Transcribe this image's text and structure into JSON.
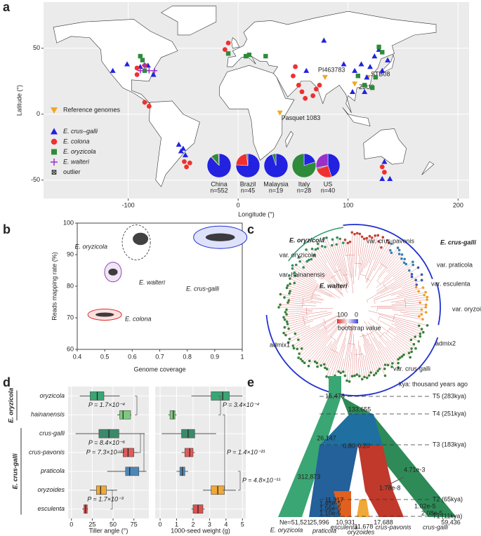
{
  "panel_labels": [
    "a",
    "b",
    "c",
    "d",
    "e"
  ],
  "chart_data": [
    {
      "type": "map",
      "xlabel": "Longitude (°)",
      "ylabel": "Latitude (°)",
      "xlim": [
        -177,
        210
      ],
      "ylim": [
        -64,
        85
      ],
      "xticks": [
        -100,
        0,
        100,
        200
      ],
      "yticks": [
        -50,
        0,
        50
      ],
      "grid": true,
      "series": [
        {
          "name": "Reference genomes",
          "color": "#f5a623",
          "marker": "triangle-down",
          "x": [
            79,
            118,
            106,
            38
          ],
          "y": [
            28,
            28,
            23,
            1
          ],
          "point_labels": [
            "PI463783",
            "STB08",
            "ZJU2",
            "Pasquet 1083"
          ]
        },
        {
          "name": "E. crus–galli",
          "color": "#2222e0",
          "marker": "triangle",
          "x": [
            78,
            62,
            96,
            106,
            112,
            117,
            120,
            124,
            128,
            131,
            136,
            115,
            104,
            -114,
            -101,
            -82,
            -77,
            -89,
            -50,
            -48,
            -52,
            -54,
            131,
            138,
            133
          ],
          "y": [
            56,
            33,
            38,
            33,
            38,
            28,
            36,
            44,
            49,
            33,
            41,
            17,
            17,
            33,
            38,
            37,
            30,
            36,
            -26,
            -31,
            -28,
            -23,
            -49,
            -49,
            -36
          ]
        },
        {
          "name": "E. colona",
          "color": "#f03030",
          "marker": "circle",
          "x": [
            50,
            55,
            58,
            61,
            52,
            68,
            74,
            -92,
            -85,
            -92,
            -85,
            -81,
            -49,
            -47,
            -44,
            133,
            131,
            -12,
            -9,
            71
          ],
          "y": [
            29,
            22,
            17,
            12,
            36,
            14,
            22,
            35,
            37,
            30,
            9,
            6,
            -36,
            -40,
            -37,
            -44,
            -40,
            49,
            54,
            19
          ]
        },
        {
          "name": "E. oryzicola",
          "color": "#2e8b3a",
          "marker": "square",
          "x": [
            -89,
            -85,
            -87,
            10,
            7,
            25,
            -9,
            128,
            131,
            115,
            125,
            109,
            122
          ],
          "y": [
            44,
            33,
            41,
            45,
            44,
            44,
            46,
            51,
            47,
            22,
            28,
            29,
            20
          ]
        },
        {
          "name": "E. walteri",
          "color": "#9b30c8",
          "marker": "plus",
          "x": [
            -89,
            -85,
            -81,
            -76
          ],
          "y": [
            33,
            37,
            33,
            33
          ]
        },
        {
          "name": "outlier",
          "color": "#222222",
          "marker": "boxx",
          "x": [],
          "y": []
        }
      ],
      "pies": [
        {
          "label": "China",
          "n": "n=552",
          "values": [
            88,
            1,
            10,
            1
          ]
        },
        {
          "label": "Brazil",
          "n": "n=45",
          "values": [
            76,
            22,
            2,
            0
          ]
        },
        {
          "label": "Malaysia",
          "n": "n=19",
          "values": [
            95,
            0,
            5,
            0
          ]
        },
        {
          "label": "Italy",
          "n": "n=28",
          "values": [
            20,
            0,
            80,
            0
          ]
        },
        {
          "label": "US",
          "n": "n=40",
          "values": [
            45,
            25,
            2,
            28
          ]
        }
      ]
    },
    {
      "type": "cluster",
      "xlabel": "Genome coverage",
      "ylabel": "Reads mapping rate (%)",
      "xlim": [
        0.4,
        1
      ],
      "ylim": [
        60,
        100
      ],
      "xticks": [
        0.4,
        0.5,
        0.6,
        0.7,
        0.8,
        0.9,
        1
      ],
      "yticks": [
        60,
        70,
        80,
        90,
        100
      ],
      "grid": true,
      "series": [
        {
          "name": "E. oryzicola",
          "color": "#2e9e6e",
          "x": [
            0.63
          ],
          "y": [
            95
          ]
        },
        {
          "name": "E. walteri",
          "color": "#8e44ad",
          "x": [
            0.53
          ],
          "y": [
            84.5
          ]
        },
        {
          "name": "E. colona",
          "color": "#e03030",
          "x": [
            0.5
          ],
          "y": [
            71
          ]
        },
        {
          "name": "E. crus-galli",
          "color": "#2030d0",
          "x": [
            0.92
          ],
          "y": [
            95.5
          ]
        }
      ]
    },
    {
      "type": "box",
      "xlabel": "Tiller angle (°)",
      "xlim": [
        -4,
        93
      ],
      "xticks": [
        0,
        25,
        50,
        75
      ],
      "grid": true,
      "group_labels": [
        "E. oryzicola",
        "E. crus-galli"
      ],
      "categories": [
        "oryzicola",
        "hainanensis",
        "crus-galli",
        "crus-pavonis",
        "praticola",
        "oryzoides",
        "esculenta"
      ],
      "colors": [
        "#3aa673",
        "#7fc97f",
        "#3a8a6a",
        "#e05a5a",
        "#4f86b8",
        "#f0a838",
        "#d9534f"
      ],
      "boxes": [
        [
          10,
          22.5,
          31,
          39,
          58
        ],
        [
          55,
          58,
          62,
          71,
          72
        ],
        [
          5,
          33,
          45,
          57,
          88
        ],
        [
          55,
          62,
          68,
          75,
          80
        ],
        [
          43,
          65,
          70,
          81,
          90
        ],
        [
          22,
          30,
          35,
          42,
          55
        ],
        [
          13,
          15,
          17,
          19,
          20
        ]
      ],
      "annotations": [
        "P = 1.7×10⁻⁴",
        "P = 8.4×10⁻⁶",
        "P = 7.3×10⁻¹¹",
        "P = 1.7×10⁻³"
      ]
    },
    {
      "type": "box",
      "xlabel": "1000-seed weight (g)",
      "xlim": [
        -0.3,
        5.2
      ],
      "xticks": [
        0,
        1,
        2,
        3,
        4,
        5
      ],
      "grid": true,
      "colors": [
        "#3aa673",
        "#7fc97f",
        "#3a8a6a",
        "#e05a5a",
        "#4f86b8",
        "#f0a838",
        "#d9534f"
      ],
      "boxes": [
        [
          1.9,
          3.1,
          3.8,
          4.2,
          5.0
        ],
        [
          0.5,
          0.6,
          0.8,
          0.9,
          1.0
        ],
        [
          0.1,
          1.3,
          1.7,
          2.1,
          3.4
        ],
        [
          1.3,
          1.5,
          1.8,
          2.0,
          2.1
        ],
        [
          1.0,
          1.2,
          1.35,
          1.5,
          1.7
        ],
        [
          2.6,
          3.1,
          3.5,
          3.9,
          4.6
        ],
        [
          1.9,
          2.0,
          2.3,
          2.6,
          2.7
        ]
      ],
      "annotations": [
        "P = 3.4×10⁻⁴",
        "P = 1.4×10⁻²¹",
        "P = 4.8×10⁻¹¹"
      ]
    }
  ],
  "tree": {
    "labels": [
      "E. oryzicola",
      "var. crus-pavonis",
      "E. crus-galli",
      "var. oryzicola",
      "var. praticola",
      "var. hainanensis",
      "var. esculenta",
      "E. walteri",
      "var. oryzoides",
      "admix2",
      "admix1",
      "var. crus-galli"
    ],
    "legend": {
      "high": "100",
      "low": "0",
      "title": "bootstrap value"
    }
  },
  "demography": {
    "note": "kya: thousand years ago",
    "times": [
      "T5 (283kya)",
      "T4 (251kya)",
      "T3 (183kya)",
      "T2 (65kya)",
      "T1 (11kya)"
    ],
    "sizes": [
      "15,478",
      "133,655",
      "26,147",
      "312,873",
      "11,317"
    ],
    "admixture": [
      "0.80",
      "0.20"
    ],
    "migration": [
      "4.71e-3",
      "1.78e-8",
      "1.45e-5",
      "1.56e-5",
      "1.10e-5",
      "1.02e-5",
      "2.08e-5"
    ],
    "ne": "Ne=51,521",
    "tip_sizes": [
      "25,996",
      "10,931",
      "11,678",
      "17,688",
      "59,436"
    ],
    "tips": [
      "E. oryzicola",
      "praticola",
      "esculenta",
      "oryzoides",
      "crus-pavonis",
      "crus-galli"
    ]
  }
}
